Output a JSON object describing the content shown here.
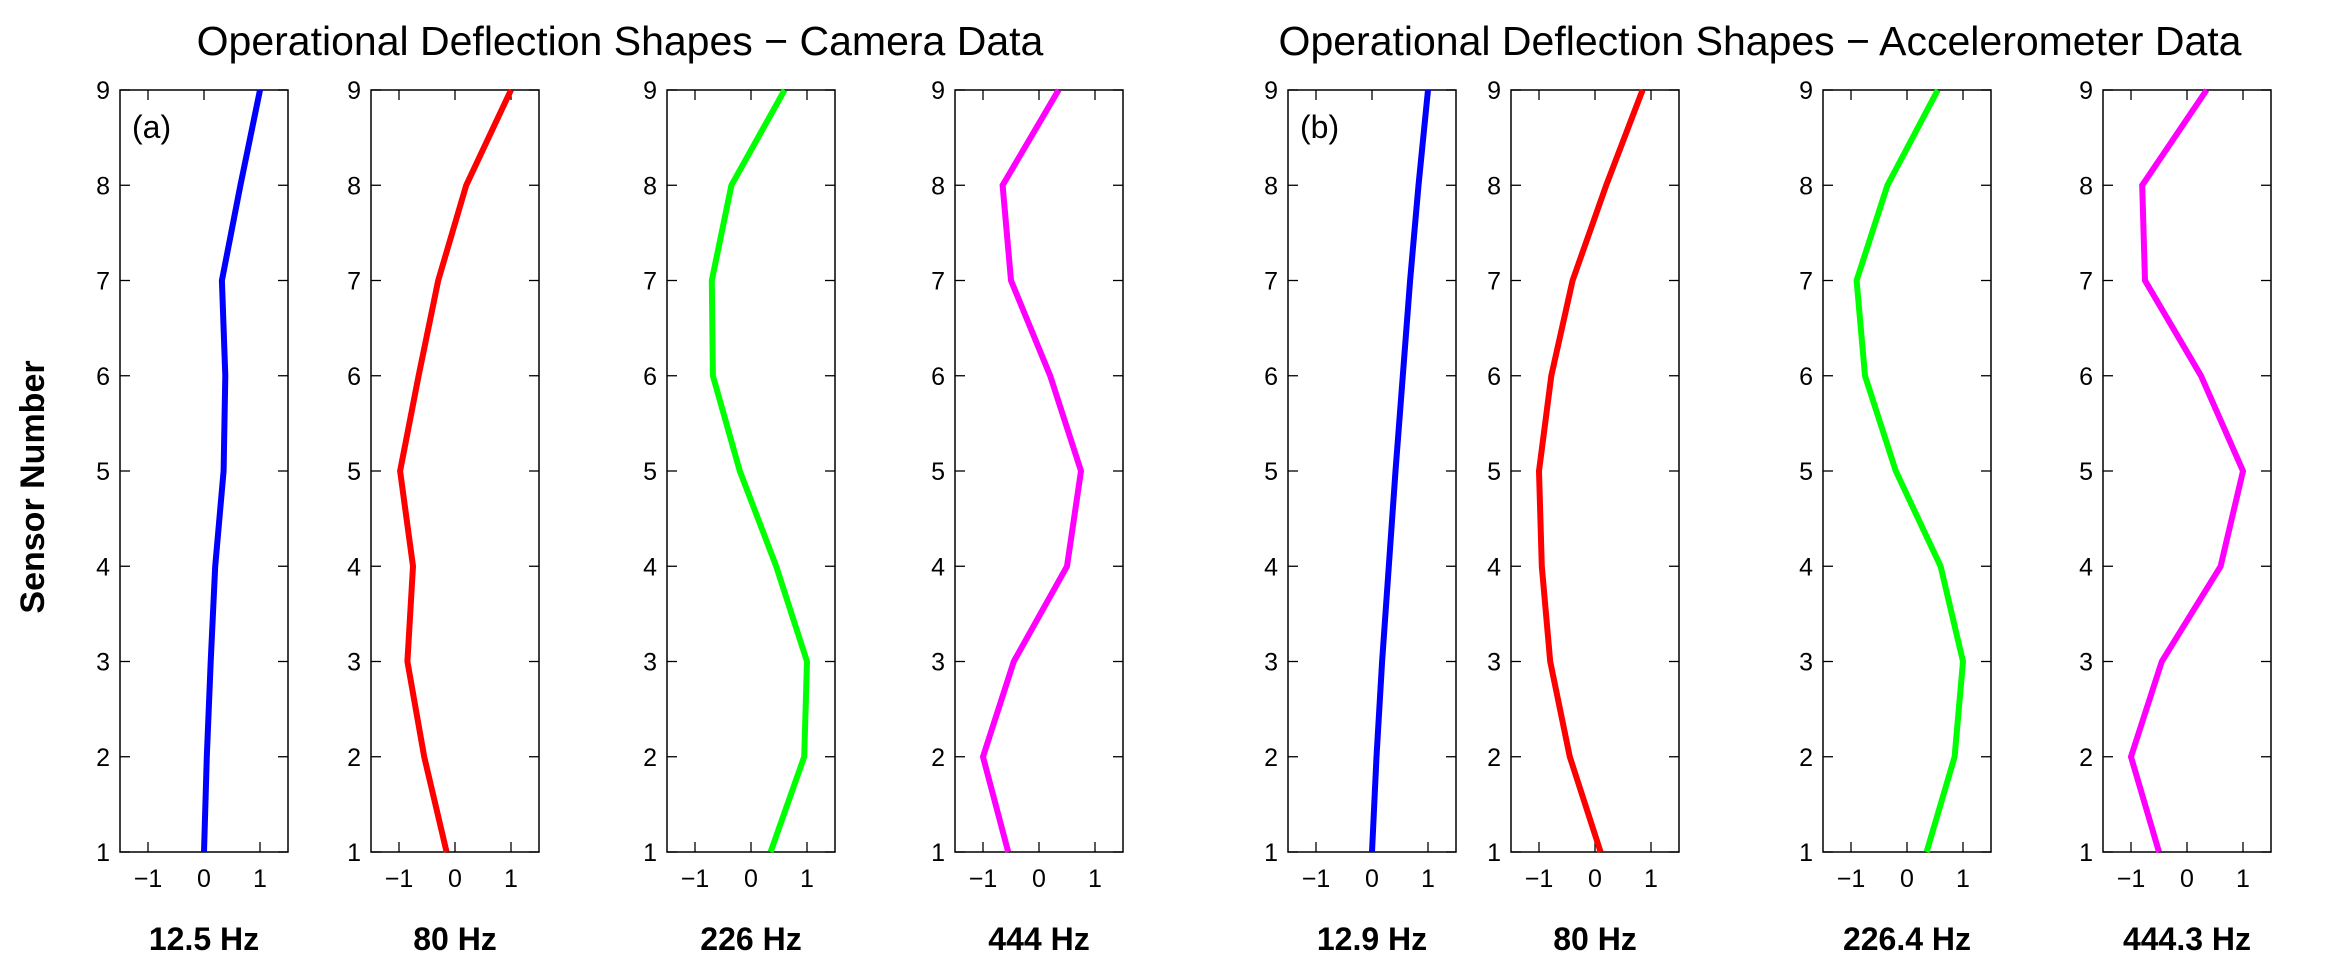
{
  "y_axis_label": "Sensor Number",
  "chart_data": [
    {
      "type": "line",
      "panel_label": "(a)",
      "title": "Operational Deflection Shapes − Camera Data",
      "subplots": [
        {
          "xlabel": "12.5 Hz",
          "color": "#0000ff",
          "x": [
            0,
            0.05,
            0.12,
            0.2,
            0.35,
            0.38,
            0.32,
            0.65,
            1.0
          ],
          "y": [
            1,
            2,
            3,
            4,
            5,
            6,
            7,
            8,
            9
          ],
          "xlim": [
            -1.5,
            1.5
          ],
          "ylim": [
            1,
            9
          ],
          "xticks": [
            "−1",
            "0",
            "1"
          ],
          "yticks": [
            "1",
            "2",
            "3",
            "4",
            "5",
            "6",
            "7",
            "8",
            "9"
          ]
        },
        {
          "xlabel": "80 Hz",
          "color": "#ff0000",
          "x": [
            -0.15,
            -0.55,
            -0.85,
            -0.75,
            -0.98,
            -0.65,
            -0.3,
            0.2,
            1.0
          ],
          "y": [
            1,
            2,
            3,
            4,
            5,
            6,
            7,
            8,
            9
          ],
          "xlim": [
            -1.5,
            1.5
          ],
          "ylim": [
            1,
            9
          ],
          "xticks": [
            "−1",
            "0",
            "1"
          ],
          "yticks": [
            "1",
            "2",
            "3",
            "4",
            "5",
            "6",
            "7",
            "8",
            "9"
          ]
        },
        {
          "xlabel": "226 Hz",
          "color": "#00ff00",
          "x": [
            0.35,
            0.95,
            1.0,
            0.45,
            -0.2,
            -0.68,
            -0.7,
            -0.35,
            0.6
          ],
          "y": [
            1,
            2,
            3,
            4,
            5,
            6,
            7,
            8,
            9
          ],
          "xlim": [
            -1.5,
            1.5
          ],
          "ylim": [
            1,
            9
          ],
          "xticks": [
            "−1",
            "0",
            "1"
          ],
          "yticks": [
            "1",
            "2",
            "3",
            "4",
            "5",
            "6",
            "7",
            "8",
            "9"
          ]
        },
        {
          "xlabel": "444 Hz",
          "color": "#ff00ff",
          "x": [
            -0.55,
            -1.0,
            -0.45,
            0.5,
            0.75,
            0.2,
            -0.5,
            -0.65,
            0.35
          ],
          "y": [
            1,
            2,
            3,
            4,
            5,
            6,
            7,
            8,
            9
          ],
          "xlim": [
            -1.5,
            1.5
          ],
          "ylim": [
            1,
            9
          ],
          "xticks": [
            "−1",
            "0",
            "1"
          ],
          "yticks": [
            "1",
            "2",
            "3",
            "4",
            "5",
            "6",
            "7",
            "8",
            "9"
          ]
        }
      ]
    },
    {
      "type": "line",
      "panel_label": "(b)",
      "title": "Operational Deflection Shapes − Accelerometer Data",
      "subplots": [
        {
          "xlabel": "12.9 Hz",
          "color": "#0000ff",
          "x": [
            0,
            0.08,
            0.18,
            0.3,
            0.42,
            0.55,
            0.68,
            0.83,
            1.0
          ],
          "y": [
            1,
            2,
            3,
            4,
            5,
            6,
            7,
            8,
            9
          ],
          "xlim": [
            -1.5,
            1.5
          ],
          "ylim": [
            1,
            9
          ],
          "xticks": [
            "−1",
            "0",
            "1"
          ],
          "yticks": [
            "1",
            "2",
            "3",
            "4",
            "5",
            "6",
            "7",
            "8",
            "9"
          ]
        },
        {
          "xlabel": "80 Hz",
          "color": "#ff0000",
          "x": [
            0.1,
            -0.45,
            -0.8,
            -0.95,
            -1.0,
            -0.78,
            -0.4,
            0.2,
            0.85
          ],
          "y": [
            1,
            2,
            3,
            4,
            5,
            6,
            7,
            8,
            9
          ],
          "xlim": [
            -1.5,
            1.5
          ],
          "ylim": [
            1,
            9
          ],
          "xticks": [
            "−1",
            "0",
            "1"
          ],
          "yticks": [
            "1",
            "2",
            "3",
            "4",
            "5",
            "6",
            "7",
            "8",
            "9"
          ]
        },
        {
          "xlabel": "226.4 Hz",
          "color": "#00ff00",
          "x": [
            0.35,
            0.85,
            1.0,
            0.6,
            -0.2,
            -0.75,
            -0.9,
            -0.35,
            0.55
          ],
          "y": [
            1,
            2,
            3,
            4,
            5,
            6,
            7,
            8,
            9
          ],
          "xlim": [
            -1.5,
            1.5
          ],
          "ylim": [
            1,
            9
          ],
          "xticks": [
            "−1",
            "0",
            "1"
          ],
          "yticks": [
            "1",
            "2",
            "3",
            "4",
            "5",
            "6",
            "7",
            "8",
            "9"
          ]
        },
        {
          "xlabel": "444.3 Hz",
          "color": "#ff00ff",
          "x": [
            -0.5,
            -1.0,
            -0.45,
            0.6,
            1.0,
            0.25,
            -0.75,
            -0.8,
            0.35
          ],
          "y": [
            1,
            2,
            3,
            4,
            5,
            6,
            7,
            8,
            9
          ],
          "xlim": [
            -1.5,
            1.5
          ],
          "ylim": [
            1,
            9
          ],
          "xticks": [
            "−1",
            "0",
            "1"
          ],
          "yticks": [
            "1",
            "2",
            "3",
            "4",
            "5",
            "6",
            "7",
            "8",
            "9"
          ]
        }
      ]
    }
  ]
}
